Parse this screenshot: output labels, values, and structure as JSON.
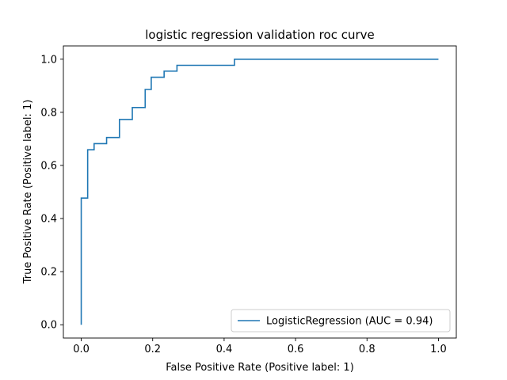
{
  "chart_data": {
    "type": "line",
    "title": "logistic regression validation roc curve",
    "xlabel": "False Positive Rate (Positive label: 1)",
    "ylabel": "True Positive Rate (Positive label: 1)",
    "xlim": [
      -0.05,
      1.05
    ],
    "ylim": [
      -0.05,
      1.05
    ],
    "xticks": [
      0.0,
      0.2,
      0.4,
      0.6,
      0.8,
      1.0
    ],
    "yticks": [
      0.0,
      0.2,
      0.4,
      0.6,
      0.8,
      1.0
    ],
    "tick_labels": [
      "0.0",
      "0.2",
      "0.4",
      "0.6",
      "0.8",
      "1.0"
    ],
    "grid": false,
    "legend_position": "lower-right",
    "series": [
      {
        "name": "LogisticRegression (AUC = 0.94)",
        "color": "#1f77b4",
        "x": [
          0.0,
          0.0,
          0.018,
          0.018,
          0.036,
          0.036,
          0.071,
          0.071,
          0.107,
          0.107,
          0.143,
          0.143,
          0.179,
          0.179,
          0.196,
          0.196,
          0.232,
          0.232,
          0.268,
          0.268,
          0.429,
          0.429,
          1.0
        ],
        "y": [
          0.0,
          0.477,
          0.477,
          0.659,
          0.659,
          0.682,
          0.682,
          0.705,
          0.705,
          0.773,
          0.773,
          0.818,
          0.818,
          0.886,
          0.886,
          0.932,
          0.932,
          0.955,
          0.955,
          0.977,
          0.977,
          1.0,
          1.0
        ]
      }
    ]
  }
}
